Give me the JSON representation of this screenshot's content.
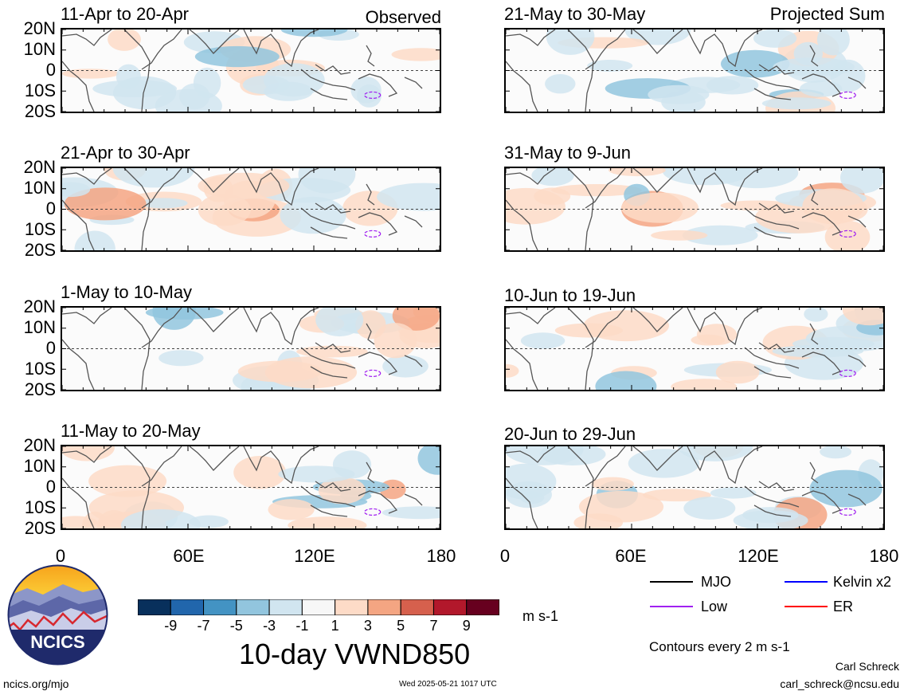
{
  "chart_data": {
    "type": "heatmap",
    "variable": "10-day VWND850",
    "units": "m s-1",
    "contour_note": "Contours every 2 m s-1",
    "colorbar": {
      "ticks": [
        "-9",
        "-7",
        "-5",
        "-3",
        "-1",
        "1",
        "3",
        "5",
        "7",
        "9"
      ],
      "colors": [
        "#08305c",
        "#2166ac",
        "#4393c3",
        "#92c5de",
        "#d1e5f0",
        "#f7f7f7",
        "#fddbc7",
        "#f4a582",
        "#d6604d",
        "#b2182b",
        "#67001f"
      ]
    },
    "x_ticks": [
      "0",
      "60E",
      "120E",
      "180"
    ],
    "y_ticks": [
      "20N",
      "10N",
      "0",
      "10S",
      "20S"
    ],
    "xlim": [
      0,
      180
    ],
    "ylim": [
      -20,
      20
    ],
    "left_column": {
      "label": "Observed",
      "panels": [
        {
          "title": "11-Apr to 20-Apr"
        },
        {
          "title": "21-Apr to 30-Apr"
        },
        {
          "title": "1-May to 10-May"
        },
        {
          "title": "11-May to 20-May"
        }
      ]
    },
    "right_column": {
      "label": "Projected Sum",
      "panels": [
        {
          "title": "21-May to 30-May"
        },
        {
          "title": "31-May to 9-Jun"
        },
        {
          "title": "10-Jun to 19-Jun"
        },
        {
          "title": "20-Jun to 29-Jun"
        }
      ]
    },
    "legend": [
      {
        "name": "MJO",
        "color": "#000000"
      },
      {
        "name": "Kelvin x2",
        "color": "#0000ff"
      },
      {
        "name": "Low",
        "color": "#a020f0"
      },
      {
        "name": "ER",
        "color": "#ff0000"
      }
    ]
  },
  "footer": {
    "logo_text": "NCICS",
    "url": "ncics.org/mjo",
    "timestamp": "Wed 2025-05-21 1017 UTC",
    "author": "Carl Schreck",
    "email": "carl_schreck@ncsu.edu"
  }
}
